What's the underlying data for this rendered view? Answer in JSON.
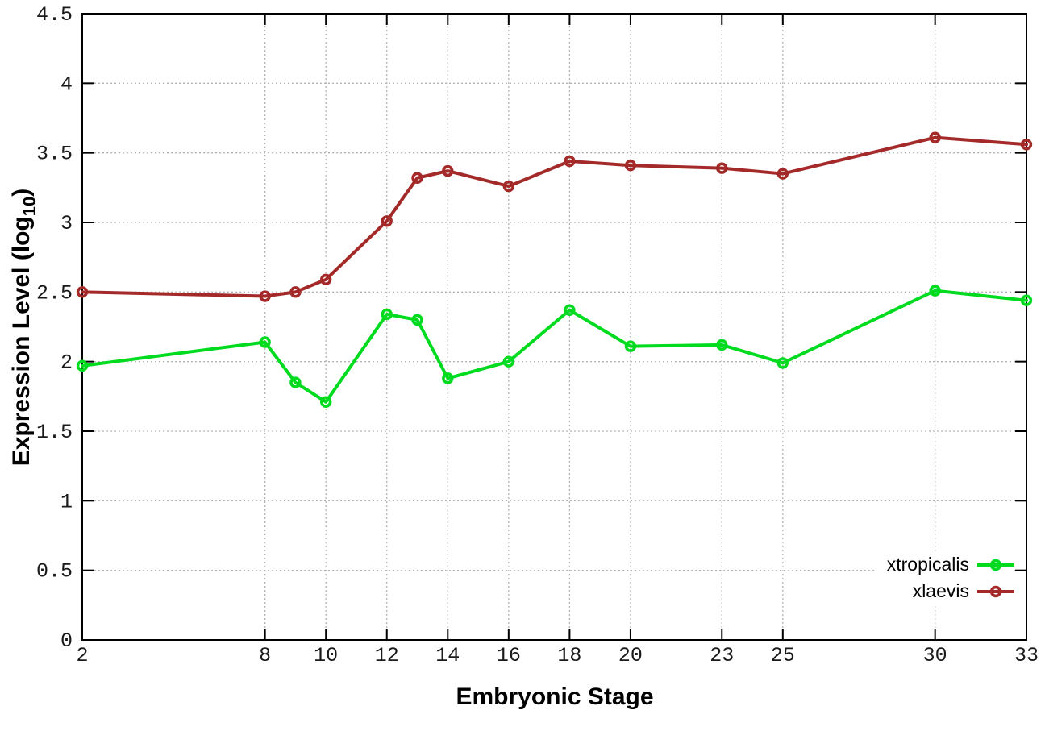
{
  "figure": {
    "background": "#ffffff",
    "border_color": "#000000",
    "grid_color": "#b4b4b4"
  },
  "chart_data": {
    "type": "line",
    "title": "",
    "xlabel": "Embryonic Stage",
    "ylabel_main": "Expression Level (log",
    "ylabel_sub": "10",
    "ylabel_suffix": ")",
    "xlim": [
      2,
      33
    ],
    "ylim": [
      0,
      4.5
    ],
    "grid": true,
    "legend_position": "bottom-right",
    "marker": "open-circle",
    "x_tick_labels": [
      "2",
      "8",
      "10",
      "12",
      "14",
      "16",
      "18",
      "20",
      "23",
      "25",
      "30",
      "33"
    ],
    "y_tick_labels": [
      "0",
      "0.5",
      "1",
      "1.5",
      "2",
      "2.5",
      "3",
      "3.5",
      "4",
      "4.5"
    ],
    "x": [
      2,
      8,
      9,
      10,
      12,
      13,
      14,
      16,
      18,
      20,
      23,
      25,
      30,
      33
    ],
    "series": [
      {
        "name": "xtropicalis",
        "color": "#00db20",
        "values": [
          1.97,
          2.14,
          1.85,
          1.71,
          2.34,
          2.3,
          1.88,
          2.0,
          2.37,
          2.11,
          2.12,
          1.99,
          2.51,
          2.44
        ]
      },
      {
        "name": "xlaevis",
        "color": "#a42a2a",
        "values": [
          2.5,
          2.47,
          2.5,
          2.59,
          3.01,
          3.32,
          3.37,
          3.26,
          3.44,
          3.41,
          3.39,
          3.35,
          3.61,
          3.56
        ]
      }
    ]
  }
}
